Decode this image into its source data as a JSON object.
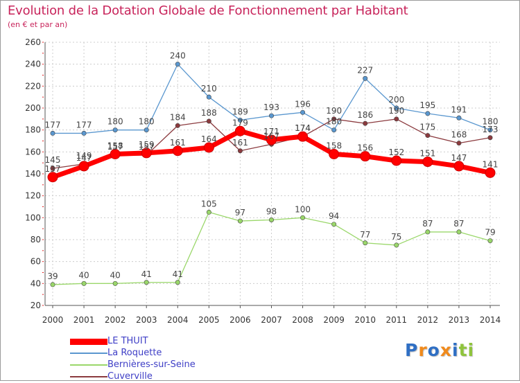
{
  "title": "Evolution de la Dotation Globale de Fonctionnement par Habitant",
  "subtitle": "(en € et par an)",
  "logo": {
    "letters": [
      "P",
      "r",
      "o",
      "x",
      "i",
      "t",
      "i"
    ],
    "colors": [
      "#2f6fc4",
      "#f08a1c",
      "#2f6fc4",
      "#f08a1c",
      "#2f6fc4",
      "#8fc43c",
      "#8fc43c"
    ]
  },
  "chart_data": {
    "type": "line",
    "x": [
      "2000",
      "2001",
      "2002",
      "2003",
      "2004",
      "2005",
      "2006",
      "2007",
      "2008",
      "2009",
      "2010",
      "2011",
      "2012",
      "2013",
      "2014"
    ],
    "ylim": [
      20,
      260
    ],
    "yticks": [
      "20",
      "40",
      "60",
      "80",
      "100",
      "120",
      "140",
      "160",
      "180",
      "200",
      "220",
      "240",
      "260"
    ],
    "grid": true,
    "legend_position": "bottom-left",
    "series": [
      {
        "name": "LE THUIT",
        "color": "#ff0000",
        "values": [
          137,
          147,
          158,
          159,
          161,
          164,
          179,
          171,
          174,
          158,
          156,
          152,
          151,
          147,
          141
        ],
        "labels": [
          "137",
          "147",
          "158",
          "159",
          "161",
          "164",
          "179",
          "171",
          "174",
          "158",
          "156",
          "152",
          "151",
          "147",
          "141"
        ]
      },
      {
        "name": "La Roquette",
        "color": "#5a97cf",
        "values": [
          177,
          177,
          180,
          180,
          240,
          210,
          189,
          193,
          196,
          180,
          227,
          200,
          195,
          191,
          180
        ],
        "labels": [
          "177",
          "177",
          "180",
          "180",
          "240",
          "210",
          "189",
          "193",
          "196",
          "180",
          "227",
          "200",
          "195",
          "191",
          "180"
        ]
      },
      {
        "name": "Bernières-sur-Seine",
        "color": "#9ad76a",
        "values": [
          39,
          40,
          40,
          41,
          41,
          105,
          97,
          98,
          100,
          94,
          77,
          75,
          87,
          87,
          79
        ],
        "labels": [
          "39",
          "40",
          "40",
          "41",
          "41",
          "105",
          "97",
          "98",
          "100",
          "94",
          "77",
          "75",
          "87",
          "87",
          "79"
        ]
      },
      {
        "name": "Cuverville",
        "color": "#8b3a3e",
        "values": [
          145,
          149,
          157,
          157,
          184,
          188,
          161,
          167,
          174,
          190,
          186,
          190,
          175,
          168,
          173
        ],
        "labels": [
          "145",
          "149",
          "157",
          "157",
          "184",
          "188",
          "161",
          "167",
          "174",
          "190",
          "186",
          "190",
          "175",
          "168",
          "173"
        ]
      }
    ]
  }
}
